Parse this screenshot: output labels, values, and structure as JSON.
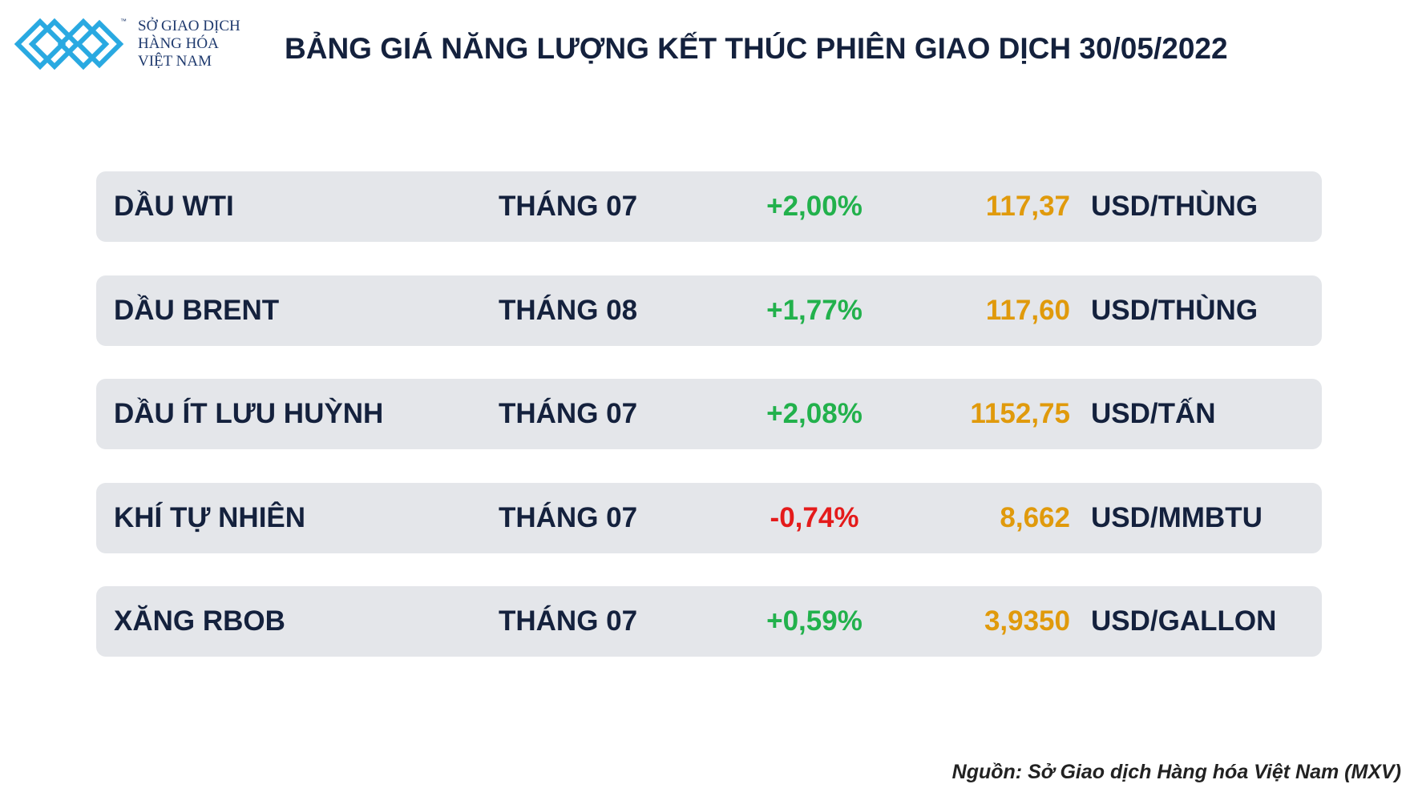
{
  "header": {
    "logo_lines": [
      "SỞ GIAO DỊCH",
      "HÀNG HÓA",
      "VIỆT NAM"
    ],
    "logo_mark": "™",
    "title": "BẢNG GIÁ NĂNG LƯỢNG KẾT THÚC PHIÊN GIAO DỊCH 30/05/2022"
  },
  "table": {
    "rows": [
      [
        "DẦU WTI",
        "THÁNG 07",
        "+2,00%",
        "117,37",
        "USD/THÙNG"
      ],
      [
        "DẦU BRENT",
        "THÁNG 08",
        "+1,77%",
        "117,60",
        "USD/THÙNG"
      ],
      [
        "DẦU ÍT LƯU HUỲNH",
        "THÁNG 07",
        "+2,08%",
        "1152,75",
        "USD/TẤN"
      ],
      [
        "KHÍ TỰ NHIÊN",
        "THÁNG 07",
        "-0,74%",
        "8,662",
        "USD/MMBTU"
      ],
      [
        "XĂNG RBOB",
        "THÁNG 07",
        "+0,59%",
        "3,9350",
        "USD/GALLON"
      ]
    ]
  },
  "source": "Nguồn: Sở Giao dịch Hàng hóa Việt Nam (MXV)"
}
